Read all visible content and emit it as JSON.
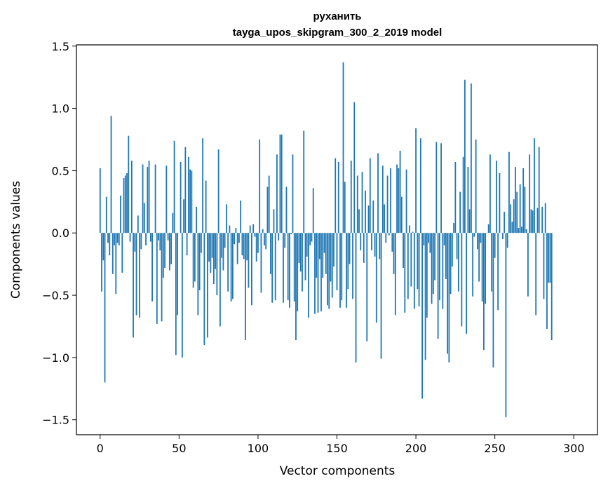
{
  "chart_data": {
    "type": "bar",
    "title": "руханить",
    "subtitle": "tayga_upos_skipgram_300_2_2019 model",
    "xlabel": "Vector components",
    "ylabel": "Components values",
    "xlim": [
      -15,
      315
    ],
    "ylim": [
      -1.62,
      1.51
    ],
    "xticks": [
      0,
      50,
      100,
      150,
      200,
      250,
      300
    ],
    "yticks": [
      -1.5,
      -1.0,
      -0.5,
      0.0,
      0.5,
      1.0,
      1.5
    ],
    "xtick_labels": [
      "0",
      "50",
      "100",
      "150",
      "200",
      "250",
      "300"
    ],
    "ytick_labels": [
      "−1.5",
      "−1.0",
      "−0.5",
      "0.0",
      "0.5",
      "1.0",
      "1.5"
    ],
    "grid": false,
    "bar_color": "#1f77b4",
    "values": [
      0.52,
      -0.47,
      -0.22,
      -1.2,
      0.29,
      -0.08,
      -0.18,
      0.94,
      -0.33,
      -0.1,
      -0.49,
      -0.08,
      -0.1,
      0.3,
      -0.32,
      0.44,
      0.46,
      0.48,
      0.78,
      -0.07,
      0.58,
      -0.84,
      -0.15,
      -0.66,
      0.14,
      -0.68,
      -0.13,
      0.55,
      0.24,
      -0.1,
      0.53,
      0.58,
      -0.07,
      -0.55,
      0.0,
      0.55,
      -0.73,
      -0.06,
      -0.14,
      -0.71,
      -0.36,
      -0.28,
      0.54,
      -0.06,
      -0.3,
      -0.25,
      0.16,
      0.74,
      -0.98,
      -0.66,
      0.0,
      0.57,
      -1.0,
      0.27,
      0.69,
      -0.18,
      0.61,
      0.51,
      0.5,
      -0.44,
      -0.39,
      0.21,
      -0.66,
      -0.46,
      -0.16,
      0.76,
      -0.9,
      0.42,
      -0.84,
      -0.23,
      -0.32,
      -0.2,
      -0.41,
      -0.29,
      -0.5,
      0.67,
      -0.75,
      -0.2,
      -0.3,
      -0.12,
      0.23,
      -0.47,
      0.06,
      -0.55,
      -0.53,
      -0.09,
      0.04,
      -0.25,
      -0.08,
      0.26,
      -0.18,
      -0.21,
      -0.86,
      -0.22,
      -0.44,
      0.06,
      -0.58,
      0.07,
      -0.03,
      -0.23,
      -0.16,
      0.75,
      -0.48,
      0.03,
      -0.1,
      -0.13,
      0.37,
      0.46,
      -0.33,
      -0.56,
      0.19,
      -0.54,
      0.63,
      -0.06,
      0.79,
      0.79,
      -0.56,
      -0.12,
      0.37,
      -0.54,
      -0.6,
      -0.01,
      0.63,
      -0.55,
      -0.86,
      -0.63,
      -0.24,
      -0.31,
      -0.47,
      0.82,
      -0.38,
      -0.19,
      -0.68,
      -0.1,
      -0.07,
      0.36,
      -0.65,
      -0.36,
      -0.64,
      -0.21,
      -0.63,
      -0.36,
      -0.16,
      -0.33,
      -0.58,
      -0.61,
      -0.39,
      -0.52,
      -0.27,
      0.6,
      -0.46,
      0.57,
      -0.6,
      -0.54,
      1.37,
      0.41,
      -0.6,
      -0.45,
      -0.25,
      0.58,
      -0.53,
      1.05,
      -1.04,
      0.46,
      0.19,
      -0.14,
      0.49,
      -0.24,
      0.34,
      -0.87,
      0.22,
      0.6,
      -0.14,
      0.26,
      -0.19,
      -0.72,
      0.64,
      -0.21,
      -1.01,
      0.54,
      0.23,
      -0.08,
      0.46,
      -0.02,
      0.52,
      -0.15,
      -0.33,
      -0.66,
      0.55,
      0.52,
      0.66,
      0.29,
      -0.28,
      -0.64,
      0.51,
      -0.53,
      0.06,
      -0.43,
      0.01,
      -0.61,
      0.84,
      -0.45,
      -0.59,
      0.76,
      -1.33,
      -0.1,
      -1.02,
      -0.68,
      -0.08,
      -0.16,
      -0.57,
      -0.49,
      -0.38,
      0.73,
      -0.85,
      -0.54,
      0.72,
      -0.61,
      -0.1,
      -0.37,
      -0.97,
      -1.04,
      -0.49,
      -0.27,
      0.08,
      0.57,
      -0.21,
      -0.47,
      0.33,
      -0.75,
      0.61,
      1.23,
      -0.81,
      0.53,
      0.19,
      1.2,
      -0.51,
      -0.03,
      0.75,
      -0.13,
      -0.39,
      -0.08,
      -0.55,
      -0.94,
      -0.57,
      0.0,
      0.07,
      0.63,
      -0.47,
      -1.08,
      -0.2,
      0.58,
      -0.62,
      0.48,
      0.0,
      -0.05,
      0.17,
      -1.48,
      -0.12,
      0.65,
      0.23,
      0.09,
      0.27,
      0.53,
      0.33,
      0.04,
      0.39,
      0.05,
      0.52,
      0.37,
      0.03,
      -0.51,
      0.63,
      0.19,
      0.18,
      0.76,
      -0.66,
      0.2,
      0.69,
      0.0,
      0.21,
      -0.53,
      0.24,
      -0.77,
      -0.4,
      -0.4,
      -0.86
    ]
  }
}
